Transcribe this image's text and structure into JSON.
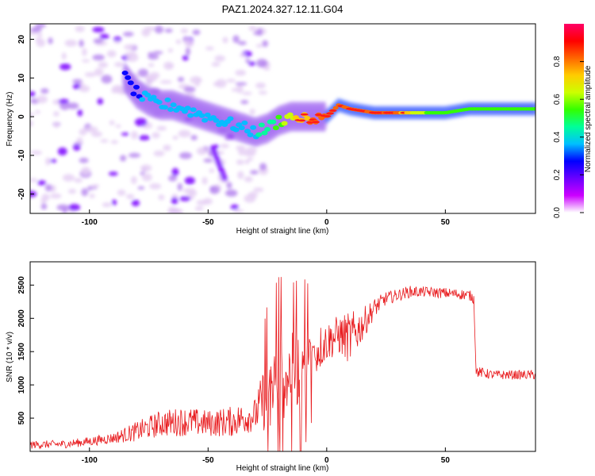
{
  "figure_title": "PAZ1.2024.327.12.11.G04",
  "colors": {
    "snr_line": "#e8191c",
    "spectral_low": "#e6d0f5",
    "spectral_mid": "#7a00ff",
    "spectral_high": "#ff1a1a",
    "colorbar_stops": [
      "#ffffff",
      "#cc00ff",
      "#6a00ff",
      "#0000ff",
      "#00bfff",
      "#00ff99",
      "#33ff00",
      "#ccff00",
      "#ffcc00",
      "#ff6600",
      "#ff0000",
      "#ff0066"
    ]
  },
  "chart_data": [
    {
      "type": "heatmap",
      "title": "PAZ1.2024.327.12.11.G04",
      "xlabel": "Height of straight line (km)",
      "ylabel": "Frequency (Hz)",
      "xlim": [
        -125,
        88
      ],
      "ylim": [
        -25,
        24
      ],
      "xticks": [
        "-100",
        "-50",
        "0",
        "50"
      ],
      "yticks": [
        "20",
        "10",
        "0",
        "-10",
        "-20"
      ],
      "colorbar_label": "Normalized spectral amplitude",
      "colorbar_range": [
        0,
        1
      ],
      "colorbar_ticks": [
        "0.0",
        "0.2",
        "0.4",
        "0.6",
        "0.8"
      ],
      "ridge": {
        "x": [
          -85,
          -80,
          -75,
          -70,
          -65,
          -60,
          -55,
          -50,
          -45,
          -40,
          -35,
          -30,
          -25,
          -20,
          -15,
          -10,
          -5,
          0,
          5,
          10,
          20,
          30,
          40,
          50,
          60,
          70,
          80,
          88
        ],
        "freq": [
          10,
          6,
          4,
          3,
          3,
          2,
          1,
          0,
          -1,
          -2,
          -3,
          -4,
          -3,
          -1,
          0,
          0,
          0,
          0,
          3,
          2,
          1,
          1,
          1,
          1,
          2,
          2,
          2,
          2
        ],
        "amplitude": [
          0.3,
          0.3,
          0.35,
          0.35,
          0.35,
          0.35,
          0.35,
          0.35,
          0.35,
          0.4,
          0.4,
          0.4,
          0.45,
          0.55,
          0.65,
          0.75,
          0.8,
          0.85,
          0.85,
          0.85,
          0.85,
          0.8,
          0.6,
          0.55,
          0.5,
          0.5,
          0.5,
          0.5
        ]
      }
    },
    {
      "type": "line",
      "xlabel": "Height of straight line (km)",
      "ylabel": "SNR (10 * v/v)",
      "xlim": [
        -125,
        88
      ],
      "ylim": [
        0,
        2850
      ],
      "xticks": [
        "-100",
        "-50",
        "0",
        "50"
      ],
      "yticks": [
        "2500",
        "2000",
        "1500",
        "1000",
        "500"
      ],
      "series": [
        {
          "x": [
            -125,
            -110,
            -100,
            -90,
            -80,
            -70,
            -60,
            -50,
            -40,
            -30,
            -25,
            -20,
            -15,
            -10,
            -5,
            0,
            5,
            10,
            15,
            20,
            25,
            30,
            35,
            40,
            50,
            60,
            62,
            63,
            70,
            80,
            88
          ],
          "values": [
            100,
            110,
            150,
            200,
            300,
            420,
            450,
            420,
            450,
            550,
            900,
            1100,
            1200,
            1300,
            1500,
            1650,
            1750,
            1700,
            1900,
            2150,
            2300,
            2350,
            2400,
            2400,
            2380,
            2350,
            2300,
            1200,
            1150,
            1150,
            1150
          ],
          "noise_amplitude": [
            60,
            60,
            70,
            80,
            150,
            200,
            220,
            200,
            230,
            250,
            600,
            700,
            600,
            600,
            400,
            300,
            300,
            400,
            250,
            150,
            100,
            90,
            90,
            80,
            80,
            80,
            80,
            80,
            70,
            70,
            70
          ]
        }
      ]
    }
  ]
}
